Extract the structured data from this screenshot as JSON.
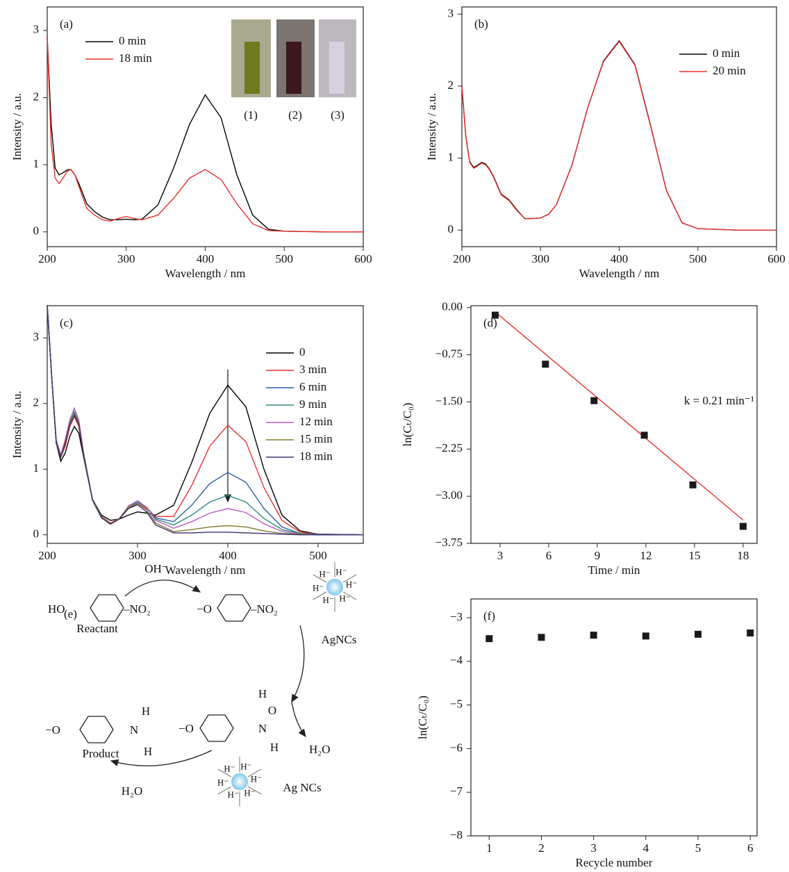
{
  "chart_data": [
    {
      "type": "line",
      "panel_label": "(a)",
      "xlabel": "Wavelength / nm",
      "ylabel": "Intensity / a.u.",
      "xlim": [
        200,
        600
      ],
      "ylim": [
        -0.22,
        3.35
      ],
      "xticks": [
        200,
        300,
        400,
        500,
        600
      ],
      "yticks": [
        0,
        1,
        2,
        3
      ],
      "legend": "upper left",
      "inset_labels": [
        "(1)",
        "(2)",
        "(3)"
      ],
      "x": [
        200,
        205,
        210,
        215,
        220,
        225,
        230,
        235,
        240,
        250,
        260,
        270,
        280,
        290,
        300,
        310,
        320,
        340,
        360,
        380,
        400,
        420,
        440,
        460,
        480,
        500,
        550,
        600
      ],
      "series": [
        {
          "name": "0 min",
          "color": "#000000",
          "values": [
            2.9,
            1.6,
            0.95,
            0.85,
            0.88,
            0.92,
            0.93,
            0.85,
            0.72,
            0.42,
            0.3,
            0.22,
            0.18,
            0.18,
            0.19,
            0.18,
            0.19,
            0.4,
            0.95,
            1.6,
            2.04,
            1.7,
            0.85,
            0.25,
            0.04,
            0.01,
            0,
            0
          ]
        },
        {
          "name": "18 min",
          "color": "#e8302a",
          "values": [
            2.9,
            1.3,
            0.8,
            0.72,
            0.8,
            0.9,
            0.93,
            0.85,
            0.68,
            0.35,
            0.25,
            0.18,
            0.16,
            0.2,
            0.23,
            0.2,
            0.18,
            0.25,
            0.5,
            0.8,
            0.93,
            0.78,
            0.42,
            0.12,
            0.02,
            0.01,
            0,
            0
          ]
        }
      ]
    },
    {
      "type": "line",
      "panel_label": "(b)",
      "xlabel": "Wavelength / nm",
      "ylabel": "Intensity / a.u.",
      "xlim": [
        200,
        600
      ],
      "ylim": [
        -0.23,
        3.1
      ],
      "xticks": [
        200,
        300,
        400,
        500,
        600
      ],
      "yticks": [
        0,
        1,
        2,
        3
      ],
      "legend": "upper right",
      "x": [
        200,
        205,
        210,
        215,
        220,
        225,
        230,
        235,
        240,
        250,
        260,
        270,
        280,
        290,
        300,
        310,
        320,
        340,
        360,
        380,
        400,
        420,
        440,
        460,
        480,
        500,
        550,
        600
      ],
      "series": [
        {
          "name": "0 min",
          "color": "#000000",
          "values": [
            2.0,
            1.3,
            0.95,
            0.87,
            0.9,
            0.94,
            0.92,
            0.85,
            0.75,
            0.5,
            0.42,
            0.28,
            0.16,
            0.16,
            0.17,
            0.22,
            0.35,
            0.9,
            1.7,
            2.35,
            2.63,
            2.3,
            1.45,
            0.55,
            0.1,
            0.02,
            0,
            0
          ]
        },
        {
          "name": "20 min",
          "color": "#e8302a",
          "values": [
            2.0,
            1.3,
            0.94,
            0.86,
            0.89,
            0.93,
            0.91,
            0.84,
            0.74,
            0.49,
            0.41,
            0.27,
            0.16,
            0.16,
            0.17,
            0.22,
            0.35,
            0.9,
            1.7,
            2.34,
            2.62,
            2.29,
            1.44,
            0.55,
            0.1,
            0.02,
            0,
            0
          ]
        }
      ]
    },
    {
      "type": "line",
      "panel_label": "(c)",
      "xlabel": "Wavelength / nm",
      "ylabel": "Intensity / a.u.",
      "xlim": [
        200,
        550
      ],
      "ylim": [
        -0.13,
        3.49
      ],
      "xticks": [
        200,
        300,
        400,
        500
      ],
      "yticks": [
        0,
        1,
        2,
        3
      ],
      "legend": "upper right",
      "x": [
        200,
        205,
        210,
        215,
        220,
        225,
        230,
        235,
        240,
        250,
        260,
        270,
        280,
        290,
        300,
        310,
        320,
        340,
        360,
        380,
        400,
        420,
        440,
        460,
        480,
        500,
        550
      ],
      "series": [
        {
          "name": "0",
          "color": "#000000",
          "values": [
            3.5,
            2.4,
            1.4,
            1.12,
            1.25,
            1.5,
            1.65,
            1.55,
            1.2,
            0.55,
            0.3,
            0.22,
            0.24,
            0.3,
            0.35,
            0.33,
            0.3,
            0.45,
            1.1,
            1.85,
            2.28,
            1.95,
            1.0,
            0.3,
            0.06,
            0.01,
            0
          ]
        },
        {
          "name": "3 min",
          "color": "#e8302a",
          "values": [
            3.5,
            2.4,
            1.4,
            1.18,
            1.35,
            1.65,
            1.8,
            1.65,
            1.25,
            0.55,
            0.28,
            0.18,
            0.25,
            0.4,
            0.48,
            0.4,
            0.28,
            0.28,
            0.75,
            1.35,
            1.67,
            1.42,
            0.72,
            0.22,
            0.04,
            0.01,
            0
          ]
        },
        {
          "name": "6 min",
          "color": "#2b5fa3",
          "values": [
            3.5,
            2.4,
            1.4,
            1.2,
            1.4,
            1.7,
            1.85,
            1.7,
            1.25,
            0.55,
            0.27,
            0.17,
            0.25,
            0.42,
            0.5,
            0.42,
            0.26,
            0.2,
            0.45,
            0.78,
            0.95,
            0.8,
            0.4,
            0.12,
            0.02,
            0.01,
            0
          ]
        },
        {
          "name": "9 min",
          "color": "#2a8a7e",
          "values": [
            3.5,
            2.4,
            1.4,
            1.2,
            1.42,
            1.72,
            1.88,
            1.72,
            1.25,
            0.55,
            0.27,
            0.17,
            0.25,
            0.43,
            0.5,
            0.42,
            0.24,
            0.15,
            0.3,
            0.5,
            0.6,
            0.5,
            0.25,
            0.08,
            0.02,
            0,
            0
          ]
        },
        {
          "name": "12 min",
          "color": "#b45cc1",
          "values": [
            3.5,
            2.4,
            1.45,
            1.22,
            1.45,
            1.75,
            1.93,
            1.75,
            1.28,
            0.55,
            0.27,
            0.17,
            0.25,
            0.44,
            0.52,
            0.42,
            0.22,
            0.1,
            0.2,
            0.33,
            0.4,
            0.34,
            0.17,
            0.05,
            0.01,
            0,
            0
          ]
        },
        {
          "name": "15 min",
          "color": "#7f7a2d",
          "values": [
            3.5,
            2.4,
            1.4,
            1.2,
            1.42,
            1.7,
            1.85,
            1.7,
            1.25,
            0.55,
            0.27,
            0.17,
            0.25,
            0.42,
            0.48,
            0.38,
            0.18,
            0.05,
            0.08,
            0.12,
            0.14,
            0.12,
            0.06,
            0.02,
            0.01,
            0,
            0
          ]
        },
        {
          "name": "18 min",
          "color": "#3b3070",
          "values": [
            3.5,
            2.4,
            1.4,
            1.18,
            1.4,
            1.68,
            1.82,
            1.68,
            1.22,
            0.53,
            0.26,
            0.16,
            0.24,
            0.4,
            0.46,
            0.35,
            0.15,
            0.03,
            0.03,
            0.04,
            0.04,
            0.03,
            0.02,
            0.01,
            0,
            0,
            0
          ]
        }
      ]
    },
    {
      "type": "scatter",
      "panel_label": "(d)",
      "xlabel": "Time / min",
      "ylabel": "ln(Cₜ/C₀)",
      "annotation": "k = 0.21 min⁻¹",
      "xlim": [
        1.2,
        18.86
      ],
      "ylim": [
        -3.75,
        0.03
      ],
      "xticks": [
        3,
        6,
        9,
        12,
        15,
        18
      ],
      "yticks": [
        {
          "value": 0,
          "label": "0.00"
        },
        {
          "value": -0.75,
          "label": "−0.75"
        },
        {
          "value": -1.5,
          "label": "−1.50"
        },
        {
          "value": -2.25,
          "label": "−2.25"
        },
        {
          "value": -3,
          "label": "−3.00"
        },
        {
          "value": -3.75,
          "label": "−3.75"
        }
      ],
      "color": "#1a1a1a",
      "x": [
        2.7,
        5.8,
        8.8,
        11.9,
        14.9,
        18
      ],
      "values": [
        -0.12,
        -0.9,
        -1.48,
        -2.03,
        -2.82,
        -3.48
      ],
      "fit_line": {
        "color": "#e8302a",
        "x": [
          2.7,
          18
        ],
        "values": [
          -0.07,
          -3.38
        ]
      }
    },
    {
      "type": "scatter",
      "panel_label": "(f)",
      "xlabel": "Recycle number",
      "ylabel": "ln(Cₜ/C₀)",
      "xlim": [
        0.65,
        6.13
      ],
      "ylim": [
        -8,
        -2.57
      ],
      "xticks": [
        1,
        2,
        3,
        4,
        5,
        6
      ],
      "yticks": [
        {
          "value": -3,
          "label": "−3"
        },
        {
          "value": -4,
          "label": "−4"
        },
        {
          "value": -5,
          "label": "−5"
        },
        {
          "value": -6,
          "label": "−6"
        },
        {
          "value": -7,
          "label": "−7"
        },
        {
          "value": -8,
          "label": "−8"
        }
      ],
      "color": "#1a1a1a",
      "x": [
        1,
        2,
        3,
        4,
        5,
        6
      ],
      "values": [
        -3.48,
        -3.45,
        -3.4,
        -3.42,
        -3.38,
        -3.35
      ]
    }
  ],
  "scheme": {
    "panel_label": "(e)",
    "labels": [
      "OH⁻",
      "HO",
      "–NO₂",
      "Reactant",
      "−O",
      "–NO₂",
      "AgNCs",
      "−O",
      "N",
      "H",
      "O",
      "H",
      "H₂O",
      "−O",
      "N",
      "H",
      "H",
      "Product",
      "H₂O",
      "Ag NCs"
    ],
    "cluster_1": [
      "H⁻",
      "H⁻",
      "H⁻",
      "H⁻",
      "H⁻",
      "H⁻"
    ],
    "cluster_2": [
      "H⁻",
      "H⁻",
      "H⁻",
      "H⁻",
      "H⁻",
      "H⁻"
    ]
  }
}
